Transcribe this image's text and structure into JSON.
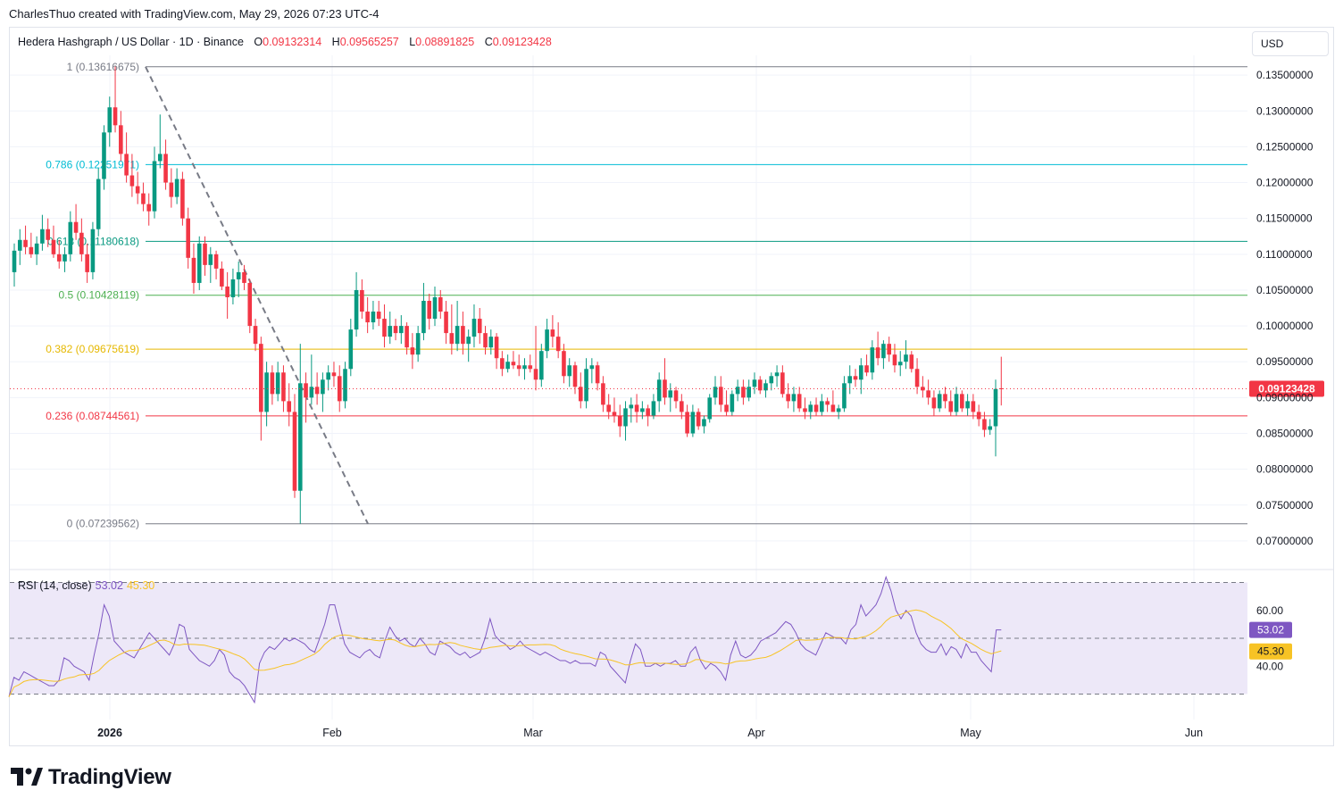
{
  "header": {
    "credit": "CharlesThuo created with TradingView.com, May 29, 2026 07:23 UTC-4"
  },
  "legend": {
    "symbol": "Hedera Hashgraph / US Dollar · 1D · Binance",
    "o_label": "O",
    "o_value": "0.09132314",
    "h_label": "H",
    "h_value": "0.09565257",
    "l_label": "L",
    "l_value": "0.08891825",
    "c_label": "C",
    "c_value": "0.09123428"
  },
  "currency_button": "USD",
  "brand": {
    "name": "TradingView"
  },
  "colors": {
    "up": "#089981",
    "down": "#f23645",
    "rsi_line": "#7e57c2",
    "rsi_ma": "#f7c325",
    "rsi_band": "#ede8f8"
  },
  "chart_data": {
    "type": "candlestick",
    "symbol": "Hedera Hashgraph / US Dollar",
    "interval": "1D",
    "exchange": "Binance",
    "price_axis": {
      "ticks": [
        "0.13500000",
        "0.13000000",
        "0.12500000",
        "0.12000000",
        "0.11500000",
        "0.11000000",
        "0.10500000",
        "0.10000000",
        "0.09500000",
        "0.09000000",
        "0.08500000",
        "0.08000000",
        "0.07500000",
        "0.07000000"
      ],
      "range": [
        0.0675,
        0.1395
      ]
    },
    "last_price": "0.09123428",
    "x_axis_labels": [
      "2026",
      "Feb",
      "Mar",
      "Apr",
      "May",
      "Jun"
    ],
    "fibonacci": {
      "levels": [
        {
          "label": "1 (0.13616675)",
          "price": 0.13616675,
          "color": "#787b86"
        },
        {
          "label": "0.786 (0.12251971)",
          "price": 0.12251971,
          "color": "#00bcd4"
        },
        {
          "label": "0.618 (0.11180618)",
          "price": 0.11180618,
          "color": "#089981"
        },
        {
          "label": "0.5 (0.10428119)",
          "price": 0.10428119,
          "color": "#4caf50"
        },
        {
          "label": "0.382 (0.09675619)",
          "price": 0.09675619,
          "color": "#e6b800"
        },
        {
          "label": "0.236 (0.08744561)",
          "price": 0.08744561,
          "color": "#f23645"
        },
        {
          "label": "0 (0.07239562)",
          "price": 0.07239562,
          "color": "#787b86"
        }
      ]
    },
    "candles": [
      [
        0.1075,
        0.1115,
        0.1055,
        0.1105
      ],
      [
        0.1105,
        0.1135,
        0.1085,
        0.112
      ],
      [
        0.112,
        0.114,
        0.11,
        0.111
      ],
      [
        0.111,
        0.113,
        0.1095,
        0.11
      ],
      [
        0.11,
        0.1125,
        0.1085,
        0.1115
      ],
      [
        0.1115,
        0.1155,
        0.1105,
        0.1135
      ],
      [
        0.1135,
        0.115,
        0.111,
        0.112
      ],
      [
        0.112,
        0.114,
        0.1095,
        0.11
      ],
      [
        0.11,
        0.112,
        0.108,
        0.109
      ],
      [
        0.109,
        0.111,
        0.1075,
        0.11
      ],
      [
        0.11,
        0.116,
        0.109,
        0.1145
      ],
      [
        0.1145,
        0.117,
        0.112,
        0.113
      ],
      [
        0.113,
        0.115,
        0.109,
        0.11
      ],
      [
        0.11,
        0.1115,
        0.106,
        0.1075
      ],
      [
        0.1075,
        0.1145,
        0.1065,
        0.1135
      ],
      [
        0.1135,
        0.122,
        0.1125,
        0.1205
      ],
      [
        0.1205,
        0.128,
        0.119,
        0.127
      ],
      [
        0.127,
        0.132,
        0.125,
        0.1305
      ],
      [
        0.1305,
        0.1362,
        0.127,
        0.128
      ],
      [
        0.128,
        0.13,
        0.123,
        0.124
      ],
      [
        0.124,
        0.127,
        0.12,
        0.121
      ],
      [
        0.121,
        0.124,
        0.118,
        0.1195
      ],
      [
        0.1195,
        0.1215,
        0.117,
        0.1185
      ],
      [
        0.1185,
        0.12,
        0.116,
        0.117
      ],
      [
        0.117,
        0.1185,
        0.114,
        0.116
      ],
      [
        0.116,
        0.125,
        0.115,
        0.123
      ],
      [
        0.123,
        0.1295,
        0.122,
        0.124
      ],
      [
        0.124,
        0.126,
        0.119,
        0.12
      ],
      [
        0.12,
        0.122,
        0.1165,
        0.118
      ],
      [
        0.118,
        0.122,
        0.117,
        0.1205
      ],
      [
        0.1205,
        0.1215,
        0.114,
        0.115
      ],
      [
        0.115,
        0.1165,
        0.108,
        0.1095
      ],
      [
        0.1095,
        0.1115,
        0.1045,
        0.106
      ],
      [
        0.106,
        0.1125,
        0.105,
        0.1115
      ],
      [
        0.1115,
        0.1125,
        0.107,
        0.1085
      ],
      [
        0.1085,
        0.111,
        0.106,
        0.11
      ],
      [
        0.11,
        0.1105,
        0.1065,
        0.108
      ],
      [
        0.108,
        0.109,
        0.105,
        0.1055
      ],
      [
        0.1055,
        0.1075,
        0.101,
        0.104
      ],
      [
        0.104,
        0.108,
        0.103,
        0.1065
      ],
      [
        0.1065,
        0.109,
        0.104,
        0.1075
      ],
      [
        0.1075,
        0.1085,
        0.105,
        0.106
      ],
      [
        0.106,
        0.1065,
        0.099,
        0.1
      ],
      [
        0.1,
        0.101,
        0.0965,
        0.0975
      ],
      [
        0.0975,
        0.0985,
        0.084,
        0.088
      ],
      [
        0.088,
        0.095,
        0.086,
        0.0935
      ],
      [
        0.0935,
        0.0945,
        0.089,
        0.0905
      ],
      [
        0.0905,
        0.095,
        0.0895,
        0.0935
      ],
      [
        0.0935,
        0.0945,
        0.088,
        0.0895
      ],
      [
        0.0895,
        0.092,
        0.086,
        0.088
      ],
      [
        0.088,
        0.0905,
        0.076,
        0.077
      ],
      [
        0.077,
        0.0975,
        0.0724,
        0.092
      ],
      [
        0.092,
        0.0935,
        0.0865,
        0.09
      ],
      [
        0.09,
        0.096,
        0.089,
        0.0915
      ],
      [
        0.0915,
        0.0935,
        0.089,
        0.0905
      ],
      [
        0.0905,
        0.0935,
        0.088,
        0.0925
      ],
      [
        0.0925,
        0.0945,
        0.091,
        0.0935
      ],
      [
        0.0935,
        0.095,
        0.0915,
        0.093
      ],
      [
        0.093,
        0.0945,
        0.088,
        0.0895
      ],
      [
        0.0895,
        0.095,
        0.0885,
        0.094
      ],
      [
        0.094,
        0.101,
        0.093,
        0.0995
      ],
      [
        0.0995,
        0.1075,
        0.0985,
        0.105
      ],
      [
        0.105,
        0.1065,
        0.101,
        0.102
      ],
      [
        0.102,
        0.104,
        0.099,
        0.1005
      ],
      [
        0.1005,
        0.1035,
        0.0995,
        0.102
      ],
      [
        0.102,
        0.1035,
        0.1,
        0.101
      ],
      [
        0.101,
        0.103,
        0.097,
        0.0985
      ],
      [
        0.0985,
        0.102,
        0.0975,
        0.1
      ],
      [
        0.1,
        0.101,
        0.098,
        0.099
      ],
      [
        0.099,
        0.1015,
        0.0975,
        0.1
      ],
      [
        0.1,
        0.1005,
        0.096,
        0.097
      ],
      [
        0.097,
        0.099,
        0.094,
        0.096
      ],
      [
        0.096,
        0.1,
        0.095,
        0.099
      ],
      [
        0.099,
        0.106,
        0.098,
        0.1035
      ],
      [
        0.1035,
        0.1045,
        0.0995,
        0.101
      ],
      [
        0.101,
        0.1055,
        0.1,
        0.104
      ],
      [
        0.104,
        0.105,
        0.101,
        0.102
      ],
      [
        0.102,
        0.1035,
        0.0975,
        0.099
      ],
      [
        0.099,
        0.103,
        0.096,
        0.0975
      ],
      [
        0.0975,
        0.1035,
        0.0965,
        0.1
      ],
      [
        0.1,
        0.102,
        0.096,
        0.0975
      ],
      [
        0.0975,
        0.0995,
        0.095,
        0.0985
      ],
      [
        0.0985,
        0.103,
        0.097,
        0.101
      ],
      [
        0.101,
        0.1025,
        0.0975,
        0.099
      ],
      [
        0.099,
        0.1,
        0.096,
        0.097
      ],
      [
        0.097,
        0.0995,
        0.096,
        0.0985
      ],
      [
        0.0985,
        0.099,
        0.094,
        0.0955
      ],
      [
        0.0955,
        0.0965,
        0.093,
        0.094
      ],
      [
        0.094,
        0.096,
        0.0935,
        0.095
      ],
      [
        0.095,
        0.0965,
        0.094,
        0.0945
      ],
      [
        0.0945,
        0.096,
        0.093,
        0.094
      ],
      [
        0.094,
        0.0955,
        0.0925,
        0.0945
      ],
      [
        0.0945,
        0.096,
        0.0935,
        0.094
      ],
      [
        0.094,
        0.1,
        0.091,
        0.0925
      ],
      [
        0.0925,
        0.0975,
        0.0915,
        0.0965
      ],
      [
        0.0965,
        0.101,
        0.0955,
        0.0995
      ],
      [
        0.0995,
        0.1015,
        0.097,
        0.0985
      ],
      [
        0.0985,
        0.1005,
        0.0955,
        0.0965
      ],
      [
        0.0965,
        0.0975,
        0.092,
        0.093
      ],
      [
        0.093,
        0.0955,
        0.0915,
        0.0945
      ],
      [
        0.0945,
        0.095,
        0.0905,
        0.0915
      ],
      [
        0.0915,
        0.0935,
        0.0885,
        0.0895
      ],
      [
        0.0895,
        0.0955,
        0.0885,
        0.094
      ],
      [
        0.094,
        0.0955,
        0.092,
        0.0945
      ],
      [
        0.0945,
        0.095,
        0.091,
        0.092
      ],
      [
        0.092,
        0.093,
        0.088,
        0.089
      ],
      [
        0.089,
        0.0905,
        0.087,
        0.088
      ],
      [
        0.088,
        0.09,
        0.0865,
        0.0875
      ],
      [
        0.0875,
        0.089,
        0.0845,
        0.086
      ],
      [
        0.086,
        0.0895,
        0.084,
        0.0885
      ],
      [
        0.0885,
        0.09,
        0.0865,
        0.089
      ],
      [
        0.089,
        0.0905,
        0.0865,
        0.088
      ],
      [
        0.088,
        0.0895,
        0.087,
        0.0885
      ],
      [
        0.0885,
        0.089,
        0.086,
        0.0875
      ],
      [
        0.0875,
        0.0905,
        0.087,
        0.0895
      ],
      [
        0.0895,
        0.0935,
        0.088,
        0.0925
      ],
      [
        0.0925,
        0.0955,
        0.089,
        0.09
      ],
      [
        0.09,
        0.092,
        0.088,
        0.091
      ],
      [
        0.091,
        0.0915,
        0.0885,
        0.0895
      ],
      [
        0.0895,
        0.0905,
        0.087,
        0.088
      ],
      [
        0.088,
        0.089,
        0.0845,
        0.085
      ],
      [
        0.085,
        0.089,
        0.0845,
        0.088
      ],
      [
        0.088,
        0.0885,
        0.0855,
        0.086
      ],
      [
        0.086,
        0.0875,
        0.085,
        0.087
      ],
      [
        0.087,
        0.0905,
        0.0865,
        0.09
      ],
      [
        0.09,
        0.093,
        0.089,
        0.0915
      ],
      [
        0.0915,
        0.093,
        0.088,
        0.089
      ],
      [
        0.089,
        0.091,
        0.0875,
        0.088
      ],
      [
        0.088,
        0.091,
        0.0875,
        0.0905
      ],
      [
        0.0905,
        0.0925,
        0.0895,
        0.0915
      ],
      [
        0.0915,
        0.0925,
        0.089,
        0.09
      ],
      [
        0.09,
        0.0925,
        0.0895,
        0.0915
      ],
      [
        0.0915,
        0.0935,
        0.0905,
        0.0925
      ],
      [
        0.0925,
        0.093,
        0.0905,
        0.091
      ],
      [
        0.091,
        0.0925,
        0.09,
        0.092
      ],
      [
        0.092,
        0.0935,
        0.091,
        0.093
      ],
      [
        0.093,
        0.0945,
        0.0915,
        0.0935
      ],
      [
        0.0935,
        0.0945,
        0.09,
        0.0905
      ],
      [
        0.0905,
        0.092,
        0.0885,
        0.0895
      ],
      [
        0.0895,
        0.0915,
        0.088,
        0.0905
      ],
      [
        0.0905,
        0.0915,
        0.088,
        0.0885
      ],
      [
        0.0885,
        0.09,
        0.087,
        0.088
      ],
      [
        0.088,
        0.0895,
        0.087,
        0.089
      ],
      [
        0.089,
        0.09,
        0.0875,
        0.088
      ],
      [
        0.088,
        0.0905,
        0.0875,
        0.0895
      ],
      [
        0.0895,
        0.09,
        0.088,
        0.089
      ],
      [
        0.089,
        0.091,
        0.088,
        0.088
      ],
      [
        0.088,
        0.089,
        0.087,
        0.0885
      ],
      [
        0.0885,
        0.093,
        0.088,
        0.092
      ],
      [
        0.092,
        0.0945,
        0.0905,
        0.093
      ],
      [
        0.093,
        0.094,
        0.0915,
        0.0925
      ],
      [
        0.0925,
        0.0955,
        0.0905,
        0.0945
      ],
      [
        0.0945,
        0.096,
        0.093,
        0.0935
      ],
      [
        0.0935,
        0.098,
        0.0925,
        0.097
      ],
      [
        0.097,
        0.0992,
        0.0945,
        0.0955
      ],
      [
        0.0955,
        0.098,
        0.094,
        0.0975
      ],
      [
        0.0975,
        0.0985,
        0.095,
        0.096
      ],
      [
        0.096,
        0.0975,
        0.0935,
        0.0945
      ],
      [
        0.0945,
        0.0965,
        0.093,
        0.095
      ],
      [
        0.095,
        0.098,
        0.094,
        0.096
      ],
      [
        0.096,
        0.0965,
        0.0935,
        0.094
      ],
      [
        0.094,
        0.0955,
        0.0905,
        0.0915
      ],
      [
        0.0915,
        0.093,
        0.09,
        0.091
      ],
      [
        0.091,
        0.0925,
        0.089,
        0.09
      ],
      [
        0.09,
        0.091,
        0.0875,
        0.0885
      ],
      [
        0.0885,
        0.091,
        0.088,
        0.0905
      ],
      [
        0.0905,
        0.0915,
        0.0885,
        0.0895
      ],
      [
        0.0895,
        0.091,
        0.0875,
        0.088
      ],
      [
        0.088,
        0.0915,
        0.0875,
        0.0905
      ],
      [
        0.0905,
        0.091,
        0.088,
        0.0885
      ],
      [
        0.0885,
        0.0905,
        0.0875,
        0.0895
      ],
      [
        0.0895,
        0.0905,
        0.087,
        0.088
      ],
      [
        0.088,
        0.089,
        0.086,
        0.087
      ],
      [
        0.087,
        0.088,
        0.0845,
        0.0855
      ],
      [
        0.0855,
        0.087,
        0.0848,
        0.086
      ],
      [
        0.086,
        0.0925,
        0.0818,
        0.0912
      ],
      [
        0.0913,
        0.0957,
        0.0889,
        0.0912
      ]
    ],
    "rsi": {
      "label": "RSI (14, close)",
      "value_label": "53.02",
      "ma_value_label": "45.30",
      "ticks": [
        "60.00",
        "40.00"
      ],
      "upper_band": 70,
      "middle_band": 50,
      "lower_band": 30,
      "range": [
        26,
        74
      ],
      "values": [
        29,
        36,
        35,
        38,
        37,
        36,
        35,
        34,
        33,
        33,
        35,
        43,
        42,
        40,
        39,
        38,
        35,
        44,
        52,
        62,
        58,
        49,
        47,
        45,
        44,
        43,
        46,
        49,
        52,
        50,
        48,
        46,
        44,
        48,
        55,
        54,
        46,
        44,
        42,
        41,
        40,
        42,
        46,
        44,
        38,
        36,
        35,
        33,
        30,
        27,
        41,
        45,
        47,
        46,
        48,
        50,
        49,
        50,
        49,
        48,
        46,
        45,
        50,
        55,
        62,
        62,
        55,
        48,
        45,
        44,
        43,
        45,
        46,
        44,
        43,
        49,
        54,
        51,
        49,
        50,
        48,
        47,
        50,
        48,
        45,
        44,
        49,
        48,
        47,
        45,
        44,
        45,
        43,
        44,
        45,
        50,
        57,
        51,
        49,
        48,
        46,
        47,
        49,
        47,
        46,
        45,
        44,
        45,
        44,
        43,
        42,
        42,
        41,
        42,
        41,
        41,
        41,
        40,
        45,
        44,
        40,
        38,
        36,
        34,
        42,
        48,
        46,
        40,
        40,
        41,
        40,
        41,
        41,
        42,
        40,
        40,
        45,
        47,
        42,
        39,
        41,
        40,
        38,
        35,
        44,
        49,
        44,
        43,
        44,
        46,
        49,
        50,
        51,
        52,
        54,
        56,
        55,
        52,
        48,
        46,
        45,
        44,
        48,
        52,
        51,
        50,
        50,
        48,
        53,
        55,
        62,
        58,
        60,
        62,
        66,
        72,
        67,
        60,
        57,
        60,
        58,
        52,
        48,
        46,
        45,
        45,
        48,
        44,
        47,
        46,
        43,
        48,
        45,
        45,
        42,
        40,
        38,
        53,
        53
      ]
    }
  }
}
